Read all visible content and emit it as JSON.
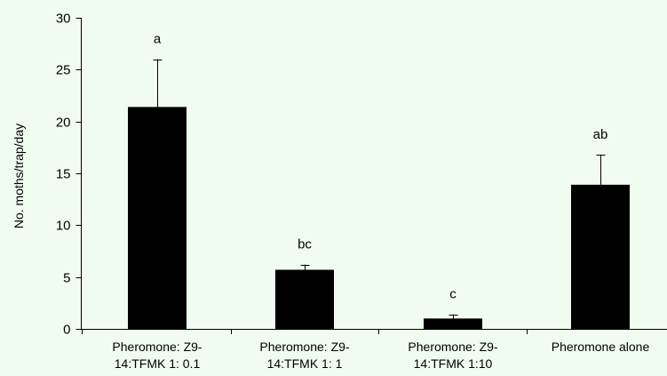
{
  "chart_data": {
    "type": "bar",
    "title": "",
    "xlabel": "",
    "ylabel": "No. moths/trap/day",
    "ylim": [
      0,
      30
    ],
    "yticks": [
      0,
      5,
      10,
      15,
      20,
      25,
      30
    ],
    "grid": false,
    "legend": "none",
    "bar_color": "#000000",
    "categories": [
      [
        "Pheromone: Z9-",
        "14:TFMK 1: 0.1"
      ],
      [
        "Pheromone: Z9-",
        "14:TFMK 1: 1"
      ],
      [
        "Pheromone: Z9-",
        "14:TFMK 1:10"
      ],
      [
        "Pheromone alone"
      ]
    ],
    "values": [
      21.4,
      5.7,
      1.0,
      13.9
    ],
    "error_upper": [
      26.0,
      6.2,
      1.4,
      16.8
    ],
    "significance_labels": [
      "a",
      "bc",
      "c",
      "ab"
    ]
  }
}
